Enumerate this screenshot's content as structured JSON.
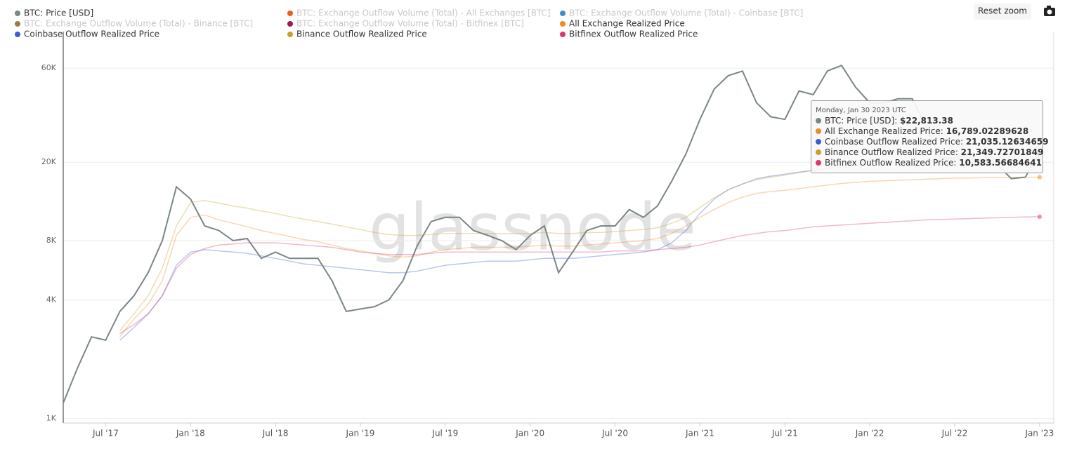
{
  "chart_data": {
    "type": "line",
    "log_scale": true,
    "grid": true,
    "watermark": "glassnode",
    "reset_button": "Reset zoom",
    "tooltip_date": "Monday, Jan 30 2023 UTC",
    "xlim": [
      "2017-04",
      "2023-02"
    ],
    "xticks": [
      {
        "value": "2017-07",
        "label": "Jul '17"
      },
      {
        "value": "2018-01",
        "label": "Jan '18"
      },
      {
        "value": "2018-07",
        "label": "Jul '18"
      },
      {
        "value": "2019-01",
        "label": "Jan '19"
      },
      {
        "value": "2019-07",
        "label": "Jul '19"
      },
      {
        "value": "2020-01",
        "label": "Jan '20"
      },
      {
        "value": "2020-07",
        "label": "Jul '20"
      },
      {
        "value": "2021-01",
        "label": "Jan '21"
      },
      {
        "value": "2021-07",
        "label": "Jul '21"
      },
      {
        "value": "2022-01",
        "label": "Jan '22"
      },
      {
        "value": "2022-07",
        "label": "Jul '22"
      },
      {
        "value": "2023-01",
        "label": "Jan '23"
      }
    ],
    "ylim": [
      950,
      92000
    ],
    "yticks": [
      {
        "value": 1000,
        "label": "1K"
      },
      {
        "value": 4000,
        "label": "4K"
      },
      {
        "value": 8000,
        "label": "8K"
      },
      {
        "value": 20000,
        "label": "20K"
      },
      {
        "value": 60000,
        "label": "60K"
      }
    ],
    "x": [
      "2017-04",
      "2017-05",
      "2017-06",
      "2017-07",
      "2017-08",
      "2017-09",
      "2017-10",
      "2017-11",
      "2017-12",
      "2018-01",
      "2018-02",
      "2018-03",
      "2018-04",
      "2018-05",
      "2018-06",
      "2018-07",
      "2018-08",
      "2018-09",
      "2018-10",
      "2018-11",
      "2018-12",
      "2019-01",
      "2019-02",
      "2019-03",
      "2019-04",
      "2019-05",
      "2019-06",
      "2019-07",
      "2019-08",
      "2019-09",
      "2019-10",
      "2019-11",
      "2019-12",
      "2020-01",
      "2020-02",
      "2020-03",
      "2020-04",
      "2020-05",
      "2020-06",
      "2020-07",
      "2020-08",
      "2020-09",
      "2020-10",
      "2020-11",
      "2020-12",
      "2021-01",
      "2021-02",
      "2021-03",
      "2021-04",
      "2021-05",
      "2021-06",
      "2021-07",
      "2021-08",
      "2021-09",
      "2021-10",
      "2021-11",
      "2021-12",
      "2022-01",
      "2022-02",
      "2022-03",
      "2022-04",
      "2022-05",
      "2022-06",
      "2022-07",
      "2022-08",
      "2022-09",
      "2022-10",
      "2022-11",
      "2022-12",
      "2023-01"
    ],
    "series": [
      {
        "name": "BTC: Price [USD]",
        "color": "#7a8784",
        "visible": true,
        "in_tooltip": true,
        "values": [
          1200,
          1800,
          2600,
          2500,
          3500,
          4200,
          5500,
          8000,
          15000,
          13000,
          9500,
          9000,
          8000,
          8200,
          6500,
          7000,
          6500,
          6500,
          6500,
          5000,
          3500,
          3600,
          3700,
          4000,
          5000,
          7500,
          10000,
          10500,
          10500,
          9000,
          8500,
          8000,
          7200,
          8500,
          9500,
          5500,
          7000,
          9000,
          9500,
          9500,
          11500,
          10500,
          12000,
          16000,
          22000,
          33000,
          47000,
          55000,
          58000,
          40000,
          34000,
          33000,
          46000,
          44000,
          58000,
          62000,
          48000,
          40000,
          40000,
          42000,
          42000,
          30000,
          21000,
          21000,
          22000,
          19500,
          19500,
          16500,
          16800,
          22813.38
        ],
        "value_labels": [
          null,
          null,
          null,
          null,
          null,
          null,
          null,
          null,
          null,
          null,
          null,
          null,
          null,
          null,
          null,
          null,
          null,
          null,
          null,
          null,
          null,
          null,
          null,
          null,
          null,
          null,
          null,
          null,
          null,
          null,
          null,
          null,
          null,
          null,
          null,
          null,
          null,
          null,
          null,
          null,
          null,
          null,
          null,
          null,
          null,
          null,
          null,
          null,
          null,
          null,
          null,
          null,
          null,
          null,
          null,
          null,
          null,
          null,
          null,
          null,
          null,
          null,
          null,
          null,
          null,
          null,
          null,
          null,
          null,
          "$22,813.38"
        ]
      },
      {
        "name": "BTC: Exchange Outflow Volume (Total) - All Exchanges [BTC]",
        "color": "#e8601c",
        "visible": false
      },
      {
        "name": "BTC: Exchange Outflow Volume (Total) - Coinbase [BTC]",
        "color": "#3d8fc6",
        "visible": false
      },
      {
        "name": "BTC: Exchange Outflow Volume (Total) - Binance [BTC]",
        "color": "#9c7b4a",
        "visible": false
      },
      {
        "name": "BTC: Exchange Outflow Volume (Total) - Bitfinex [BTC]",
        "color": "#a5184b",
        "visible": false
      },
      {
        "name": "All Exchange Realized Price",
        "color": "#f08a24",
        "visible": true,
        "in_tooltip": true,
        "values": [
          null,
          null,
          null,
          null,
          2600,
          3200,
          3800,
          5000,
          8500,
          10500,
          10800,
          10200,
          9800,
          9400,
          9000,
          8700,
          8400,
          8100,
          7900,
          7600,
          7300,
          7100,
          6900,
          6700,
          6600,
          6700,
          7000,
          7200,
          7300,
          7400,
          7400,
          7400,
          7400,
          7500,
          7600,
          7500,
          7500,
          7600,
          7700,
          7800,
          7900,
          8000,
          8200,
          8700,
          9500,
          10500,
          11500,
          12500,
          13300,
          13900,
          14200,
          14400,
          14700,
          15000,
          15300,
          15600,
          15800,
          16000,
          16100,
          16200,
          16300,
          16400,
          16500,
          16600,
          16600,
          16700,
          16700,
          16750,
          16780,
          16789.02289628
        ],
        "value_labels": [
          null,
          null,
          null,
          null,
          null,
          null,
          null,
          null,
          null,
          null,
          null,
          null,
          null,
          null,
          null,
          null,
          null,
          null,
          null,
          null,
          null,
          null,
          null,
          null,
          null,
          null,
          null,
          null,
          null,
          null,
          null,
          null,
          null,
          null,
          null,
          null,
          null,
          null,
          null,
          null,
          null,
          null,
          null,
          null,
          null,
          null,
          null,
          null,
          null,
          null,
          null,
          null,
          null,
          null,
          null,
          null,
          null,
          null,
          null,
          null,
          null,
          null,
          null,
          null,
          null,
          null,
          null,
          null,
          null,
          "16,789.02289628"
        ]
      },
      {
        "name": "Coinbase Outflow Realized Price",
        "color": "#3a5fcd",
        "visible": true,
        "in_tooltip": true,
        "values": [
          null,
          null,
          null,
          null,
          2500,
          2900,
          3400,
          4200,
          6000,
          7000,
          7200,
          7100,
          7000,
          6900,
          6700,
          6500,
          6300,
          6100,
          6000,
          5900,
          5800,
          5700,
          5600,
          5500,
          5500,
          5600,
          5800,
          6000,
          6100,
          6200,
          6300,
          6300,
          6300,
          6400,
          6500,
          6500,
          6500,
          6600,
          6700,
          6800,
          6900,
          7000,
          7200,
          7800,
          9000,
          11000,
          13000,
          14500,
          15500,
          16500,
          17000,
          17400,
          17800,
          18200,
          18600,
          19000,
          19300,
          19600,
          19800,
          20000,
          20100,
          20300,
          20500,
          20600,
          20700,
          20800,
          20900,
          20950,
          21000,
          21035.12634659
        ],
        "value_labels": [
          null,
          null,
          null,
          null,
          null,
          null,
          null,
          null,
          null,
          null,
          null,
          null,
          null,
          null,
          null,
          null,
          null,
          null,
          null,
          null,
          null,
          null,
          null,
          null,
          null,
          null,
          null,
          null,
          null,
          null,
          null,
          null,
          null,
          null,
          null,
          null,
          null,
          null,
          null,
          null,
          null,
          null,
          null,
          null,
          null,
          null,
          null,
          null,
          null,
          null,
          null,
          null,
          null,
          null,
          null,
          null,
          null,
          null,
          null,
          null,
          null,
          null,
          null,
          null,
          null,
          null,
          null,
          null,
          null,
          "21,035.12634659"
        ]
      },
      {
        "name": "Binance Outflow Realized Price",
        "color": "#c9a227",
        "visible": true,
        "in_tooltip": true,
        "values": [
          null,
          null,
          null,
          null,
          2800,
          3400,
          4200,
          5800,
          9500,
          12500,
          12800,
          12400,
          12000,
          11700,
          11300,
          11000,
          10600,
          10300,
          10000,
          9700,
          9400,
          9100,
          8800,
          8600,
          8500,
          8500,
          8600,
          8700,
          8700,
          8700,
          8700,
          8700,
          8700,
          8700,
          8800,
          8700,
          8700,
          8800,
          8800,
          8900,
          9000,
          9100,
          9300,
          9800,
          10500,
          11800,
          13200,
          14500,
          15500,
          16300,
          16800,
          17200,
          17700,
          18200,
          18700,
          19200,
          19500,
          19800,
          20000,
          20200,
          20400,
          20600,
          20800,
          21000,
          21100,
          21200,
          21250,
          21300,
          21330,
          21349.72701849
        ],
        "value_labels": [
          null,
          null,
          null,
          null,
          null,
          null,
          null,
          null,
          null,
          null,
          null,
          null,
          null,
          null,
          null,
          null,
          null,
          null,
          null,
          null,
          null,
          null,
          null,
          null,
          null,
          null,
          null,
          null,
          null,
          null,
          null,
          null,
          null,
          null,
          null,
          null,
          null,
          null,
          null,
          null,
          null,
          null,
          null,
          null,
          null,
          null,
          null,
          null,
          null,
          null,
          null,
          null,
          null,
          null,
          null,
          null,
          null,
          null,
          null,
          null,
          null,
          null,
          null,
          null,
          null,
          null,
          null,
          null,
          null,
          "21,349.72701849"
        ]
      },
      {
        "name": "Bitfinex Outflow Realized Price",
        "color": "#e0356b",
        "visible": true,
        "in_tooltip": true,
        "values": [
          null,
          null,
          null,
          null,
          2700,
          3000,
          3400,
          4200,
          5800,
          6800,
          7300,
          7600,
          7700,
          7800,
          7800,
          7800,
          7700,
          7600,
          7500,
          7400,
          7200,
          7000,
          6900,
          6800,
          6800,
          6800,
          6900,
          7000,
          7000,
          7000,
          7000,
          7000,
          7000,
          7000,
          7000,
          7000,
          7000,
          7000,
          7000,
          7100,
          7100,
          7100,
          7200,
          7300,
          7400,
          7600,
          7900,
          8200,
          8500,
          8700,
          8900,
          9000,
          9200,
          9400,
          9500,
          9600,
          9700,
          9800,
          9900,
          10000,
          10100,
          10200,
          10250,
          10300,
          10350,
          10400,
          10450,
          10500,
          10550,
          10583.56684641
        ],
        "value_labels": [
          null,
          null,
          null,
          null,
          null,
          null,
          null,
          null,
          null,
          null,
          null,
          null,
          null,
          null,
          null,
          null,
          null,
          null,
          null,
          null,
          null,
          null,
          null,
          null,
          null,
          null,
          null,
          null,
          null,
          null,
          null,
          null,
          null,
          null,
          null,
          null,
          null,
          null,
          null,
          null,
          null,
          null,
          null,
          null,
          null,
          null,
          null,
          null,
          null,
          null,
          null,
          null,
          null,
          null,
          null,
          null,
          null,
          null,
          null,
          null,
          null,
          null,
          null,
          null,
          null,
          null,
          null,
          null,
          null,
          "10,583.56684641"
        ]
      }
    ]
  }
}
